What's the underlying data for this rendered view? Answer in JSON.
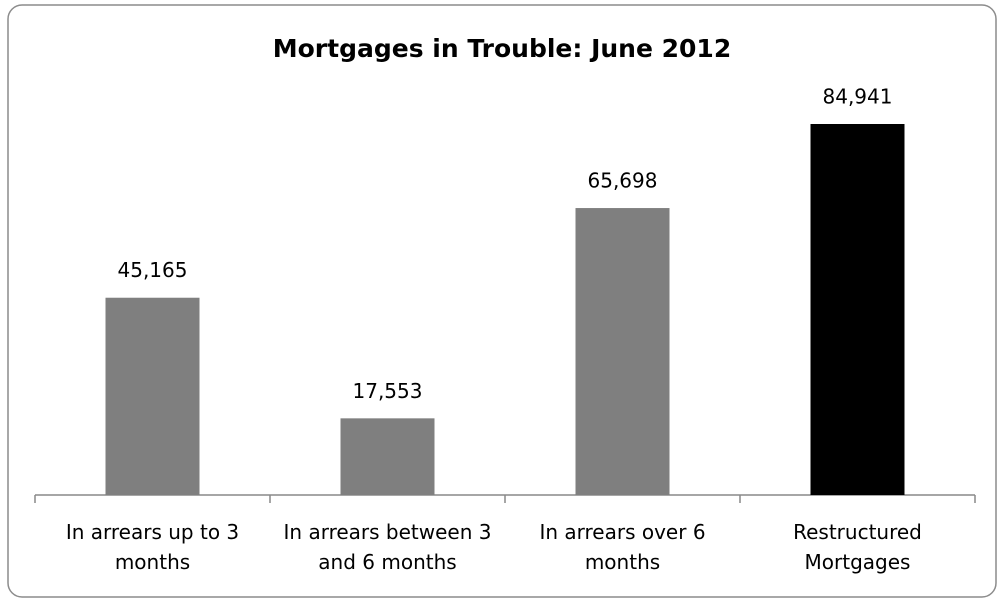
{
  "chart_data": {
    "type": "bar",
    "title": "Mortgages in Trouble:  June 2012",
    "categories": [
      "In arrears up to 3 months",
      "In arrears between 3 and 6 months",
      "In arrears over 6 months",
      "Restructured Mortgages"
    ],
    "values": [
      45165,
      17553,
      65698,
      84941
    ],
    "value_labels": [
      "45,165",
      "17,553",
      "65,698",
      "84,941"
    ],
    "colors": [
      "#7f7f7f",
      "#7f7f7f",
      "#7f7f7f",
      "#000000"
    ]
  }
}
